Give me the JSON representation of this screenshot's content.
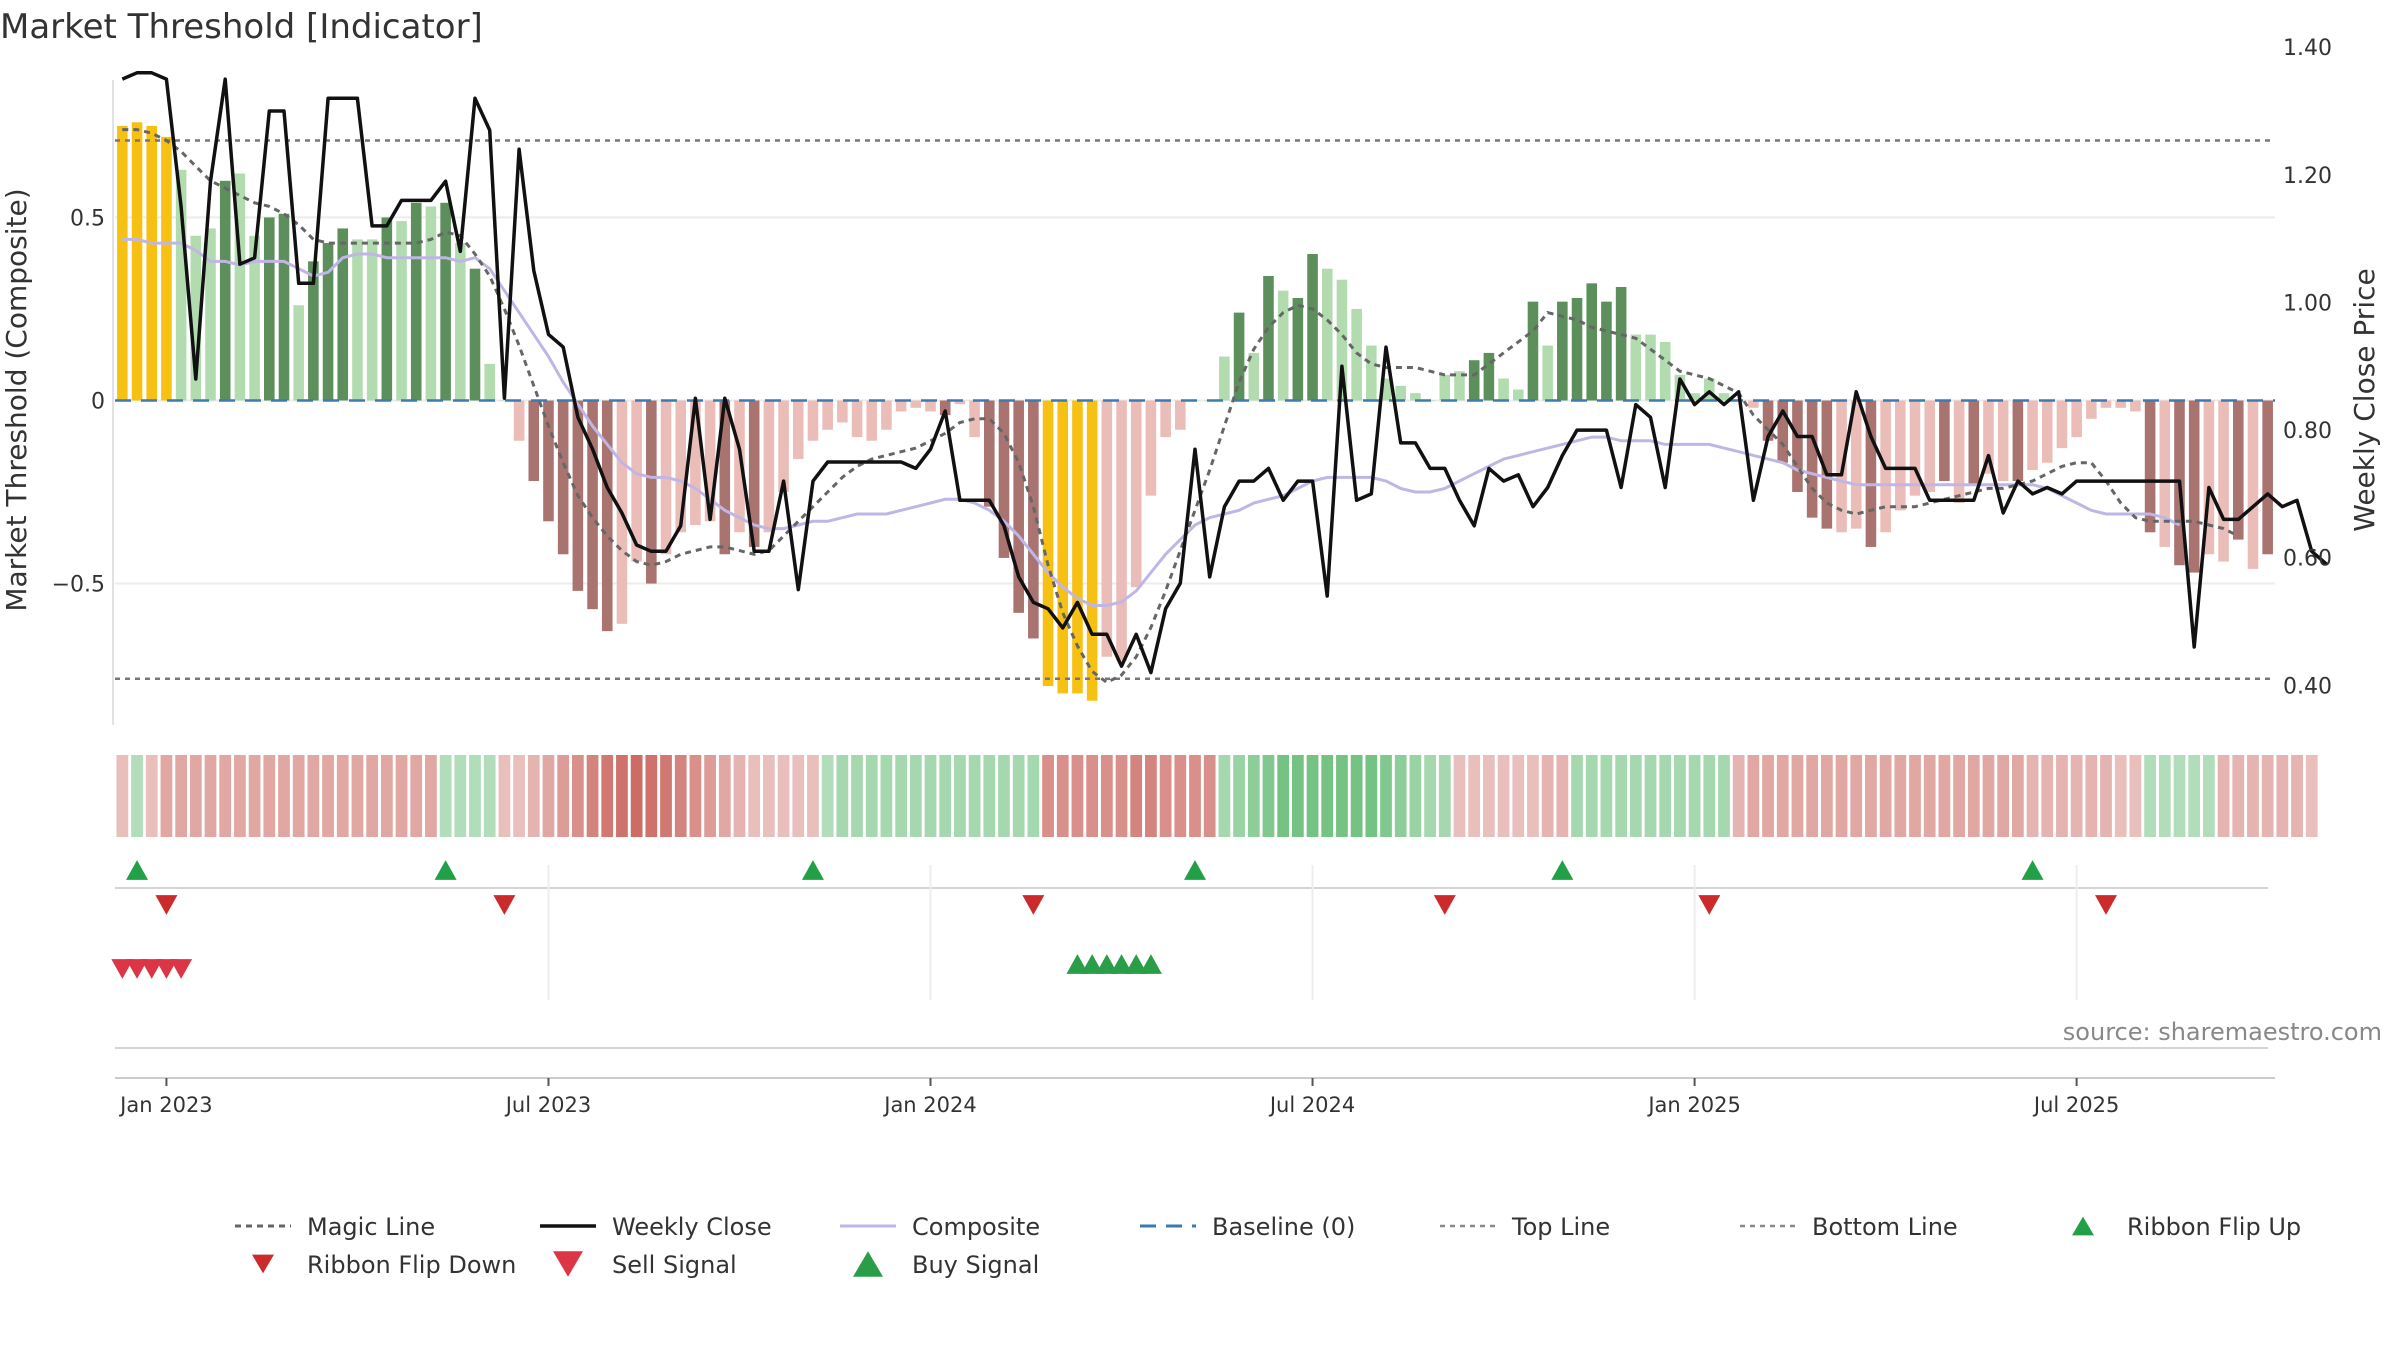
{
  "chart_data": {
    "type": "bar",
    "title": "Market Threshold [Indicator]",
    "ylabel_left": "Market Threshold (Composite)",
    "ylabel_right": "Weekly Close Price",
    "source": "source: sharemaestro.com",
    "left_ticks": [
      {
        "v": 0.5,
        "label": "0.5"
      },
      {
        "v": 0,
        "label": "0"
      },
      {
        "v": -0.5,
        "label": "−0.5"
      }
    ],
    "right_ticks": [
      {
        "v": 1.4,
        "label": "1.40"
      },
      {
        "v": 1.2,
        "label": "1.20"
      },
      {
        "v": 1.0,
        "label": "1.00"
      },
      {
        "v": 0.8,
        "label": "0.80"
      },
      {
        "v": 0.6,
        "label": "0.60"
      },
      {
        "v": 0.4,
        "label": "0.40"
      }
    ],
    "left_ylim": [
      -0.9,
      0.93
    ],
    "right_ylim": [
      0.33,
      1.38
    ],
    "x_ticks": [
      {
        "i": 3,
        "label": "Jan 2023"
      },
      {
        "i": 29,
        "label": "Jul 2023"
      },
      {
        "i": 55,
        "label": "Jan 2024"
      },
      {
        "i": 81,
        "label": "Jul 2024"
      },
      {
        "i": 107,
        "label": "Jan 2025"
      },
      {
        "i": 133,
        "label": "Jul 2025"
      }
    ],
    "top_line": 0.71,
    "bottom_line": -0.76,
    "baseline": 0,
    "grid": true,
    "colors": {
      "strong_up": "#5c8f5c",
      "weak_up": "#b2dcb0",
      "strong_down": "#a97370",
      "weak_down": "#ebbdb9",
      "extreme": "#f7c114",
      "close": "#111111",
      "magic": "#666666",
      "composite": "#c0b6e6",
      "baseline": "#3d7ab2",
      "ribbon_green": "#5cb86d",
      "ribbon_red": "#c86058",
      "flip_up": "#22a048",
      "flip_down": "#cc2b2b",
      "sell": "#dc3545",
      "buy": "#2a9d48"
    },
    "bars": [
      [
        0.75,
        "E"
      ],
      [
        0.76,
        "E"
      ],
      [
        0.75,
        "E"
      ],
      [
        0.72,
        "E"
      ],
      [
        0.63,
        "W+"
      ],
      [
        0.45,
        "W+"
      ],
      [
        0.47,
        "W+"
      ],
      [
        0.6,
        "S+"
      ],
      [
        0.62,
        "W+"
      ],
      [
        0.45,
        "W+"
      ],
      [
        0.5,
        "S+"
      ],
      [
        0.51,
        "S+"
      ],
      [
        0.26,
        "W+"
      ],
      [
        0.38,
        "S+"
      ],
      [
        0.43,
        "S+"
      ],
      [
        0.47,
        "S+"
      ],
      [
        0.44,
        "W+"
      ],
      [
        0.44,
        "W+"
      ],
      [
        0.5,
        "S+"
      ],
      [
        0.49,
        "W+"
      ],
      [
        0.54,
        "S+"
      ],
      [
        0.53,
        "W+"
      ],
      [
        0.54,
        "S+"
      ],
      [
        0.43,
        "W+"
      ],
      [
        0.36,
        "S+"
      ],
      [
        0.1,
        "W+"
      ],
      [
        0.0,
        "W+"
      ],
      [
        -0.11,
        "W-"
      ],
      [
        -0.22,
        "S-"
      ],
      [
        -0.33,
        "S-"
      ],
      [
        -0.42,
        "S-"
      ],
      [
        -0.52,
        "S-"
      ],
      [
        -0.57,
        "S-"
      ],
      [
        -0.63,
        "S-"
      ],
      [
        -0.61,
        "W-"
      ],
      [
        -0.44,
        "W-"
      ],
      [
        -0.5,
        "S-"
      ],
      [
        -0.42,
        "W-"
      ],
      [
        -0.36,
        "W-"
      ],
      [
        -0.34,
        "W-"
      ],
      [
        -0.33,
        "W-"
      ],
      [
        -0.42,
        "S-"
      ],
      [
        -0.36,
        "W-"
      ],
      [
        -0.4,
        "S-"
      ],
      [
        -0.36,
        "W-"
      ],
      [
        -0.25,
        "W-"
      ],
      [
        -0.16,
        "W-"
      ],
      [
        -0.11,
        "W-"
      ],
      [
        -0.08,
        "W-"
      ],
      [
        -0.06,
        "W-"
      ],
      [
        -0.1,
        "W-"
      ],
      [
        -0.11,
        "W-"
      ],
      [
        -0.08,
        "W-"
      ],
      [
        -0.03,
        "W-"
      ],
      [
        -0.02,
        "W-"
      ],
      [
        -0.03,
        "W-"
      ],
      [
        -0.04,
        "S-"
      ],
      [
        -0.01,
        "W-"
      ],
      [
        -0.1,
        "W-"
      ],
      [
        -0.29,
        "S-"
      ],
      [
        -0.43,
        "S-"
      ],
      [
        -0.58,
        "S-"
      ],
      [
        -0.65,
        "S-"
      ],
      [
        -0.78,
        "E"
      ],
      [
        -0.8,
        "E"
      ],
      [
        -0.8,
        "E"
      ],
      [
        -0.82,
        "E"
      ],
      [
        -0.7,
        "W-"
      ],
      [
        -0.71,
        "W-"
      ],
      [
        -0.51,
        "W-"
      ],
      [
        -0.26,
        "W-"
      ],
      [
        -0.1,
        "W-"
      ],
      [
        -0.08,
        "W-"
      ],
      [
        0.0,
        "W+"
      ],
      [
        0.0,
        "W+"
      ],
      [
        0.12,
        "W+"
      ],
      [
        0.24,
        "S+"
      ],
      [
        0.13,
        "W+"
      ],
      [
        0.34,
        "S+"
      ],
      [
        0.3,
        "W+"
      ],
      [
        0.28,
        "S+"
      ],
      [
        0.4,
        "S+"
      ],
      [
        0.36,
        "W+"
      ],
      [
        0.33,
        "W+"
      ],
      [
        0.25,
        "W+"
      ],
      [
        0.15,
        "W+"
      ],
      [
        0.06,
        "W+"
      ],
      [
        0.04,
        "W+"
      ],
      [
        0.02,
        "W+"
      ],
      [
        0.0,
        "W+"
      ],
      [
        0.07,
        "W+"
      ],
      [
        0.08,
        "W+"
      ],
      [
        0.11,
        "S+"
      ],
      [
        0.13,
        "S+"
      ],
      [
        0.06,
        "W+"
      ],
      [
        0.03,
        "W+"
      ],
      [
        0.27,
        "S+"
      ],
      [
        0.15,
        "W+"
      ],
      [
        0.27,
        "S+"
      ],
      [
        0.28,
        "S+"
      ],
      [
        0.32,
        "S+"
      ],
      [
        0.27,
        "S+"
      ],
      [
        0.31,
        "S+"
      ],
      [
        0.18,
        "W+"
      ],
      [
        0.18,
        "W+"
      ],
      [
        0.16,
        "W+"
      ],
      [
        0.07,
        "W+"
      ],
      [
        0.02,
        "W+"
      ],
      [
        0.06,
        "W+"
      ],
      [
        0.02,
        "W+"
      ],
      [
        0.0,
        "W+"
      ],
      [
        -0.02,
        "W-"
      ],
      [
        -0.11,
        "S-"
      ],
      [
        -0.17,
        "S-"
      ],
      [
        -0.25,
        "S-"
      ],
      [
        -0.32,
        "S-"
      ],
      [
        -0.35,
        "S-"
      ],
      [
        -0.36,
        "W-"
      ],
      [
        -0.35,
        "W-"
      ],
      [
        -0.4,
        "S-"
      ],
      [
        -0.36,
        "W-"
      ],
      [
        -0.3,
        "W-"
      ],
      [
        -0.26,
        "W-"
      ],
      [
        -0.25,
        "W-"
      ],
      [
        -0.22,
        "S-"
      ],
      [
        -0.28,
        "W-"
      ],
      [
        -0.23,
        "S-"
      ],
      [
        -0.2,
        "W-"
      ],
      [
        -0.22,
        "W-"
      ],
      [
        -0.22,
        "S-"
      ],
      [
        -0.19,
        "W-"
      ],
      [
        -0.17,
        "W-"
      ],
      [
        -0.13,
        "W-"
      ],
      [
        -0.1,
        "W-"
      ],
      [
        -0.05,
        "W-"
      ],
      [
        -0.02,
        "W-"
      ],
      [
        -0.02,
        "W-"
      ],
      [
        -0.03,
        "W-"
      ],
      [
        -0.36,
        "S-"
      ],
      [
        -0.4,
        "W-"
      ],
      [
        -0.45,
        "S-"
      ],
      [
        -0.47,
        "S-"
      ],
      [
        -0.42,
        "W-"
      ],
      [
        -0.44,
        "W-"
      ],
      [
        -0.38,
        "S-"
      ],
      [
        -0.46,
        "W-"
      ],
      [
        -0.42,
        "S-"
      ]
    ],
    "composite": [
      0.44,
      0.44,
      0.43,
      0.43,
      0.43,
      0.41,
      0.38,
      0.38,
      0.37,
      0.38,
      0.38,
      0.38,
      0.36,
      0.34,
      0.35,
      0.39,
      0.4,
      0.4,
      0.39,
      0.39,
      0.39,
      0.39,
      0.39,
      0.38,
      0.39,
      0.36,
      0.3,
      0.24,
      0.18,
      0.12,
      0.05,
      -0.01,
      -0.07,
      -0.12,
      -0.17,
      -0.2,
      -0.21,
      -0.21,
      -0.22,
      -0.24,
      -0.27,
      -0.3,
      -0.32,
      -0.34,
      -0.35,
      -0.35,
      -0.34,
      -0.33,
      -0.33,
      -0.32,
      -0.31,
      -0.31,
      -0.31,
      -0.3,
      -0.29,
      -0.28,
      -0.27,
      -0.27,
      -0.28,
      -0.3,
      -0.33,
      -0.37,
      -0.42,
      -0.47,
      -0.51,
      -0.54,
      -0.56,
      -0.56,
      -0.55,
      -0.52,
      -0.47,
      -0.42,
      -0.38,
      -0.34,
      -0.32,
      -0.31,
      -0.3,
      -0.28,
      -0.27,
      -0.26,
      -0.24,
      -0.22,
      -0.21,
      -0.21,
      -0.21,
      -0.21,
      -0.22,
      -0.24,
      -0.25,
      -0.25,
      -0.24,
      -0.22,
      -0.2,
      -0.18,
      -0.16,
      -0.15,
      -0.14,
      -0.13,
      -0.12,
      -0.11,
      -0.1,
      -0.1,
      -0.11,
      -0.11,
      -0.11,
      -0.12,
      -0.12,
      -0.12,
      -0.12,
      -0.13,
      -0.14,
      -0.15,
      -0.16,
      -0.17,
      -0.19,
      -0.2,
      -0.21,
      -0.22,
      -0.23,
      -0.23,
      -0.23,
      -0.23,
      -0.23,
      -0.23,
      -0.23,
      -0.23,
      -0.23,
      -0.23,
      -0.23,
      -0.23,
      -0.23,
      -0.24,
      -0.26,
      -0.28,
      -0.3,
      -0.31,
      -0.31,
      -0.31,
      -0.31,
      -0.32,
      -0.34
    ],
    "magic": [
      0.74,
      0.74,
      0.73,
      0.71,
      0.68,
      0.64,
      0.6,
      0.58,
      0.56,
      0.54,
      0.53,
      0.51,
      0.48,
      0.44,
      0.43,
      0.43,
      0.43,
      0.43,
      0.43,
      0.43,
      0.43,
      0.44,
      0.46,
      0.45,
      0.4,
      0.34,
      0.25,
      0.15,
      0.04,
      -0.07,
      -0.17,
      -0.26,
      -0.32,
      -0.37,
      -0.41,
      -0.44,
      -0.45,
      -0.44,
      -0.42,
      -0.41,
      -0.4,
      -0.4,
      -0.41,
      -0.42,
      -0.41,
      -0.37,
      -0.33,
      -0.29,
      -0.25,
      -0.21,
      -0.18,
      -0.16,
      -0.15,
      -0.14,
      -0.13,
      -0.11,
      -0.09,
      -0.06,
      -0.05,
      -0.05,
      -0.09,
      -0.17,
      -0.29,
      -0.45,
      -0.58,
      -0.67,
      -0.74,
      -0.77,
      -0.75,
      -0.7,
      -0.62,
      -0.52,
      -0.41,
      -0.3,
      -0.19,
      -0.07,
      0.05,
      0.14,
      0.2,
      0.24,
      0.26,
      0.25,
      0.22,
      0.18,
      0.13,
      0.1,
      0.09,
      0.09,
      0.09,
      0.08,
      0.07,
      0.07,
      0.07,
      0.1,
      0.13,
      0.16,
      0.19,
      0.24,
      0.23,
      0.22,
      0.2,
      0.19,
      0.18,
      0.17,
      0.14,
      0.11,
      0.08,
      0.07,
      0.06,
      0.04,
      0.02,
      -0.04,
      -0.08,
      -0.12,
      -0.18,
      -0.24,
      -0.28,
      -0.3,
      -0.31,
      -0.3,
      -0.29,
      -0.29,
      -0.29,
      -0.28,
      -0.27,
      -0.26,
      -0.25,
      -0.24,
      -0.24,
      -0.23,
      -0.22,
      -0.2,
      -0.18,
      -0.17,
      -0.17,
      -0.22,
      -0.28,
      -0.32,
      -0.33,
      -0.33,
      -0.33,
      -0.33,
      -0.34,
      -0.35,
      -0.37
    ],
    "close": [
      1.35,
      1.36,
      1.36,
      1.35,
      1.15,
      0.88,
      1.19,
      1.35,
      1.06,
      1.07,
      1.3,
      1.3,
      1.03,
      1.03,
      1.32,
      1.32,
      1.32,
      1.12,
      1.12,
      1.16,
      1.16,
      1.16,
      1.19,
      1.08,
      1.32,
      1.27,
      0.85,
      1.24,
      1.05,
      0.95,
      0.93,
      0.82,
      0.77,
      0.71,
      0.67,
      0.62,
      0.61,
      0.61,
      0.65,
      0.85,
      0.66,
      0.85,
      0.77,
      0.61,
      0.61,
      0.72,
      0.55,
      0.72,
      0.75,
      0.75,
      0.75,
      0.75,
      0.75,
      0.75,
      0.74,
      0.77,
      0.83,
      0.69,
      0.69,
      0.69,
      0.65,
      0.57,
      0.53,
      0.52,
      0.49,
      0.53,
      0.48,
      0.48,
      0.43,
      0.48,
      0.42,
      0.52,
      0.56,
      0.77,
      0.57,
      0.68,
      0.72,
      0.72,
      0.74,
      0.69,
      0.72,
      0.72,
      0.54,
      0.9,
      0.69,
      0.7,
      0.93,
      0.78,
      0.78,
      0.74,
      0.74,
      0.69,
      0.65,
      0.74,
      0.72,
      0.73,
      0.68,
      0.71,
      0.76,
      0.8,
      0.8,
      0.8,
      0.71,
      0.84,
      0.82,
      0.71,
      0.88,
      0.84,
      0.86,
      0.84,
      0.86,
      0.69,
      0.79,
      0.83,
      0.79,
      0.79,
      0.73,
      0.73,
      0.86,
      0.79,
      0.74,
      0.74,
      0.74,
      0.69,
      0.69,
      0.69,
      0.69,
      0.76,
      0.67,
      0.72,
      0.7,
      0.71,
      0.7,
      0.72,
      0.72,
      0.72,
      0.72,
      0.72,
      0.72,
      0.72,
      0.72,
      0.46,
      0.71,
      0.66,
      0.66,
      0.68,
      0.7,
      0.68,
      0.69,
      0.61,
      0.59
    ],
    "ribbon": [
      -0.2,
      0.3,
      -0.2,
      -0.4,
      -0.4,
      -0.4,
      -0.4,
      -0.4,
      -0.4,
      -0.4,
      -0.4,
      -0.4,
      -0.4,
      -0.4,
      -0.4,
      -0.4,
      -0.4,
      -0.4,
      -0.4,
      -0.4,
      -0.4,
      -0.4,
      0.3,
      0.3,
      0.3,
      0.3,
      -0.2,
      -0.2,
      -0.3,
      -0.4,
      -0.5,
      -0.6,
      -0.7,
      -0.8,
      -0.85,
      -0.9,
      -0.85,
      -0.8,
      -0.7,
      -0.6,
      -0.5,
      -0.4,
      -0.3,
      -0.2,
      -0.2,
      -0.2,
      -0.2,
      -0.2,
      0.3,
      0.4,
      0.4,
      0.4,
      0.4,
      0.4,
      0.4,
      0.4,
      0.4,
      0.4,
      0.4,
      0.4,
      0.4,
      0.4,
      0.4,
      -0.6,
      -0.6,
      -0.6,
      -0.6,
      -0.6,
      -0.6,
      -0.7,
      -0.7,
      -0.6,
      -0.6,
      -0.6,
      -0.6,
      0.4,
      0.5,
      0.6,
      0.7,
      0.8,
      0.8,
      0.8,
      0.8,
      0.8,
      0.8,
      0.8,
      0.7,
      0.6,
      0.5,
      0.4,
      0.4,
      -0.2,
      -0.2,
      -0.2,
      -0.2,
      -0.2,
      -0.2,
      -0.3,
      -0.3,
      0.4,
      0.4,
      0.4,
      0.4,
      0.4,
      0.4,
      0.4,
      0.4,
      0.4,
      0.4,
      0.4,
      -0.3,
      -0.4,
      -0.4,
      -0.4,
      -0.4,
      -0.4,
      -0.4,
      -0.4,
      -0.4,
      -0.4,
      -0.4,
      -0.4,
      -0.4,
      -0.4,
      -0.4,
      -0.4,
      -0.4,
      -0.4,
      -0.4,
      -0.4,
      -0.3,
      -0.3,
      -0.3,
      -0.3,
      -0.3,
      -0.3,
      -0.2,
      -0.2,
      0.3,
      0.3,
      0.3,
      0.3,
      0.3,
      -0.3,
      -0.3,
      -0.3,
      -0.3,
      -0.3,
      -0.3,
      -0.2
    ],
    "flip_up": [
      1,
      22,
      47,
      73,
      98,
      130
    ],
    "flip_down": [
      3,
      26,
      62,
      90,
      108,
      135
    ],
    "sell": [
      0,
      1,
      2,
      3,
      4
    ],
    "buy": [
      65,
      66,
      67,
      68,
      69,
      70
    ],
    "legend": [
      {
        "label": "Magic Line",
        "key": "magic"
      },
      {
        "label": "Weekly Close",
        "key": "close"
      },
      {
        "label": "Composite",
        "key": "composite"
      },
      {
        "label": "Baseline (0)",
        "key": "baseline"
      },
      {
        "label": "Top Line",
        "key": "top"
      },
      {
        "label": "Bottom Line",
        "key": "bottom"
      },
      {
        "label": "Ribbon Flip Up",
        "key": "flip_up"
      },
      {
        "label": "Ribbon Flip Down",
        "key": "flip_down"
      },
      {
        "label": "Sell Signal",
        "key": "sell"
      },
      {
        "label": "Buy Signal",
        "key": "buy"
      }
    ]
  }
}
